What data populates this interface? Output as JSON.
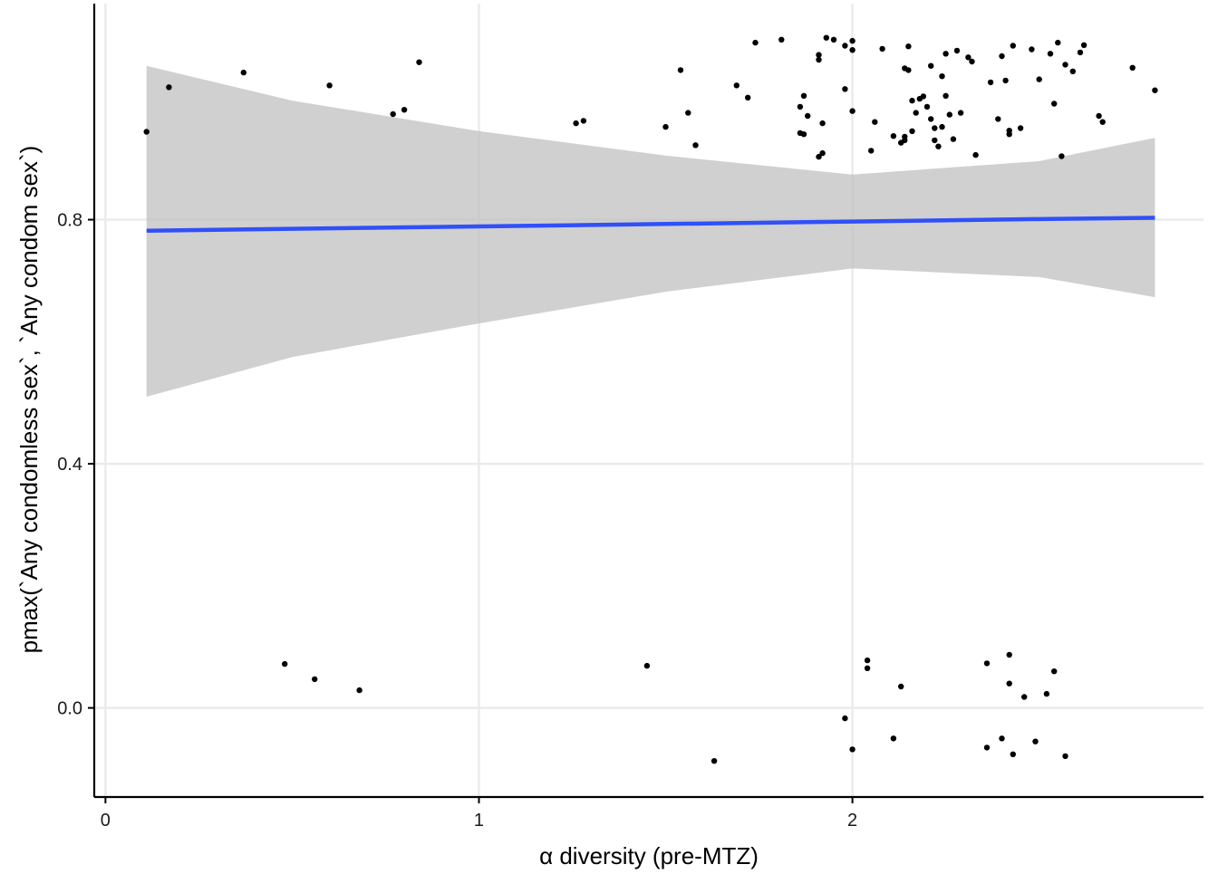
{
  "chart_data": {
    "type": "scatter",
    "title": "",
    "xlabel": "α diversity (pre-MTZ)",
    "ylabel": "pmax(`Any condomless sex`, `Any condom sex`)",
    "xlim": [
      -0.03,
      2.94
    ],
    "ylim": [
      -0.146,
      1.154
    ],
    "x_ticks": [
      0,
      1,
      2
    ],
    "x_tick_labels": [
      "0",
      "1",
      "2"
    ],
    "y_ticks": [
      0.0,
      0.4,
      0.8
    ],
    "y_tick_labels": [
      "0.0",
      "0.4",
      "0.8"
    ],
    "grid": true,
    "legend": "none",
    "colors": {
      "points": "#000000",
      "fit_line": "#3050f8",
      "confidence_band": "#bebebe",
      "grid": "#ebebeb",
      "axis": "#000000"
    },
    "fit": {
      "method": "lm",
      "x": [
        0.11,
        0.5,
        1.0,
        1.5,
        2.0,
        2.5,
        2.81
      ],
      "y": [
        0.782,
        0.785,
        0.789,
        0.793,
        0.797,
        0.801,
        0.803
      ],
      "lower": [
        0.51,
        0.575,
        0.63,
        0.682,
        0.72,
        0.706,
        0.673
      ],
      "upper": [
        1.052,
        0.995,
        0.945,
        0.905,
        0.874,
        0.896,
        0.934
      ]
    },
    "series": [
      {
        "points": [
          {
            "x": 0.11,
            "y": 0.944
          },
          {
            "x": 0.17,
            "y": 1.017
          },
          {
            "x": 0.37,
            "y": 1.041
          },
          {
            "x": 0.6,
            "y": 1.02
          },
          {
            "x": 0.77,
            "y": 0.973
          },
          {
            "x": 0.8,
            "y": 0.98
          },
          {
            "x": 0.84,
            "y": 1.058
          },
          {
            "x": 1.26,
            "y": 0.958
          },
          {
            "x": 1.28,
            "y": 0.962
          },
          {
            "x": 1.5,
            "y": 0.952
          },
          {
            "x": 1.54,
            "y": 1.045
          },
          {
            "x": 1.56,
            "y": 0.975
          },
          {
            "x": 1.58,
            "y": 0.922
          },
          {
            "x": 1.69,
            "y": 1.02
          },
          {
            "x": 1.72,
            "y": 1.0
          },
          {
            "x": 1.74,
            "y": 1.09
          },
          {
            "x": 1.81,
            "y": 1.095
          },
          {
            "x": 1.86,
            "y": 0.985
          },
          {
            "x": 1.86,
            "y": 0.942
          },
          {
            "x": 1.87,
            "y": 0.94
          },
          {
            "x": 1.87,
            "y": 1.003
          },
          {
            "x": 1.88,
            "y": 0.97
          },
          {
            "x": 1.91,
            "y": 1.07
          },
          {
            "x": 1.91,
            "y": 1.062
          },
          {
            "x": 1.91,
            "y": 0.903
          },
          {
            "x": 1.92,
            "y": 0.909
          },
          {
            "x": 1.92,
            "y": 0.958
          },
          {
            "x": 1.93,
            "y": 1.098
          },
          {
            "x": 1.95,
            "y": 1.095
          },
          {
            "x": 1.98,
            "y": 1.014
          },
          {
            "x": 1.98,
            "y": 1.085
          },
          {
            "x": 2.0,
            "y": 1.093
          },
          {
            "x": 2.0,
            "y": 0.978
          },
          {
            "x": 2.0,
            "y": 1.078
          },
          {
            "x": 2.05,
            "y": 0.913
          },
          {
            "x": 2.06,
            "y": 0.96
          },
          {
            "x": 2.08,
            "y": 1.08
          },
          {
            "x": 2.11,
            "y": 0.937
          },
          {
            "x": 2.13,
            "y": 0.926
          },
          {
            "x": 2.14,
            "y": 0.93
          },
          {
            "x": 2.14,
            "y": 0.936
          },
          {
            "x": 2.14,
            "y": 1.048
          },
          {
            "x": 2.15,
            "y": 1.084
          },
          {
            "x": 2.15,
            "y": 1.045
          },
          {
            "x": 2.16,
            "y": 0.995
          },
          {
            "x": 2.16,
            "y": 0.945
          },
          {
            "x": 2.17,
            "y": 0.975
          },
          {
            "x": 2.18,
            "y": 0.998
          },
          {
            "x": 2.19,
            "y": 1.002
          },
          {
            "x": 2.2,
            "y": 0.985
          },
          {
            "x": 2.21,
            "y": 1.052
          },
          {
            "x": 2.21,
            "y": 0.965
          },
          {
            "x": 2.22,
            "y": 0.93
          },
          {
            "x": 2.22,
            "y": 0.95
          },
          {
            "x": 2.23,
            "y": 0.92
          },
          {
            "x": 2.24,
            "y": 1.035
          },
          {
            "x": 2.24,
            "y": 0.952
          },
          {
            "x": 2.25,
            "y": 1.003
          },
          {
            "x": 2.25,
            "y": 1.072
          },
          {
            "x": 2.26,
            "y": 0.972
          },
          {
            "x": 2.27,
            "y": 0.932
          },
          {
            "x": 2.28,
            "y": 1.077
          },
          {
            "x": 2.29,
            "y": 0.975
          },
          {
            "x": 2.31,
            "y": 1.066
          },
          {
            "x": 2.32,
            "y": 1.059
          },
          {
            "x": 2.33,
            "y": 0.906
          },
          {
            "x": 2.37,
            "y": 1.025
          },
          {
            "x": 2.39,
            "y": 0.965
          },
          {
            "x": 2.4,
            "y": 1.068
          },
          {
            "x": 2.41,
            "y": 1.028
          },
          {
            "x": 2.42,
            "y": 0.946
          },
          {
            "x": 2.42,
            "y": 0.94
          },
          {
            "x": 2.43,
            "y": 1.085
          },
          {
            "x": 2.45,
            "y": 0.95
          },
          {
            "x": 2.48,
            "y": 1.079
          },
          {
            "x": 2.5,
            "y": 1.03
          },
          {
            "x": 2.53,
            "y": 1.072
          },
          {
            "x": 2.54,
            "y": 0.99
          },
          {
            "x": 2.55,
            "y": 1.09
          },
          {
            "x": 2.56,
            "y": 0.904
          },
          {
            "x": 2.57,
            "y": 1.054
          },
          {
            "x": 2.59,
            "y": 1.043
          },
          {
            "x": 2.61,
            "y": 1.074
          },
          {
            "x": 2.62,
            "y": 1.086
          },
          {
            "x": 2.66,
            "y": 0.97
          },
          {
            "x": 2.67,
            "y": 0.96
          },
          {
            "x": 2.75,
            "y": 1.049
          },
          {
            "x": 2.81,
            "y": 1.012
          },
          {
            "x": 0.48,
            "y": 0.072
          },
          {
            "x": 0.56,
            "y": 0.047
          },
          {
            "x": 0.68,
            "y": 0.029
          },
          {
            "x": 1.45,
            "y": 0.069
          },
          {
            "x": 1.63,
            "y": -0.087
          },
          {
            "x": 1.98,
            "y": -0.017
          },
          {
            "x": 2.0,
            "y": -0.068
          },
          {
            "x": 2.04,
            "y": 0.078
          },
          {
            "x": 2.04,
            "y": 0.065
          },
          {
            "x": 2.11,
            "y": -0.05
          },
          {
            "x": 2.13,
            "y": 0.035
          },
          {
            "x": 2.36,
            "y": -0.065
          },
          {
            "x": 2.36,
            "y": 0.073
          },
          {
            "x": 2.4,
            "y": -0.05
          },
          {
            "x": 2.42,
            "y": 0.087
          },
          {
            "x": 2.42,
            "y": 0.04
          },
          {
            "x": 2.43,
            "y": -0.076
          },
          {
            "x": 2.46,
            "y": 0.018
          },
          {
            "x": 2.49,
            "y": -0.055
          },
          {
            "x": 2.52,
            "y": 0.023
          },
          {
            "x": 2.54,
            "y": 0.06
          },
          {
            "x": 2.57,
            "y": -0.079
          }
        ]
      }
    ]
  }
}
